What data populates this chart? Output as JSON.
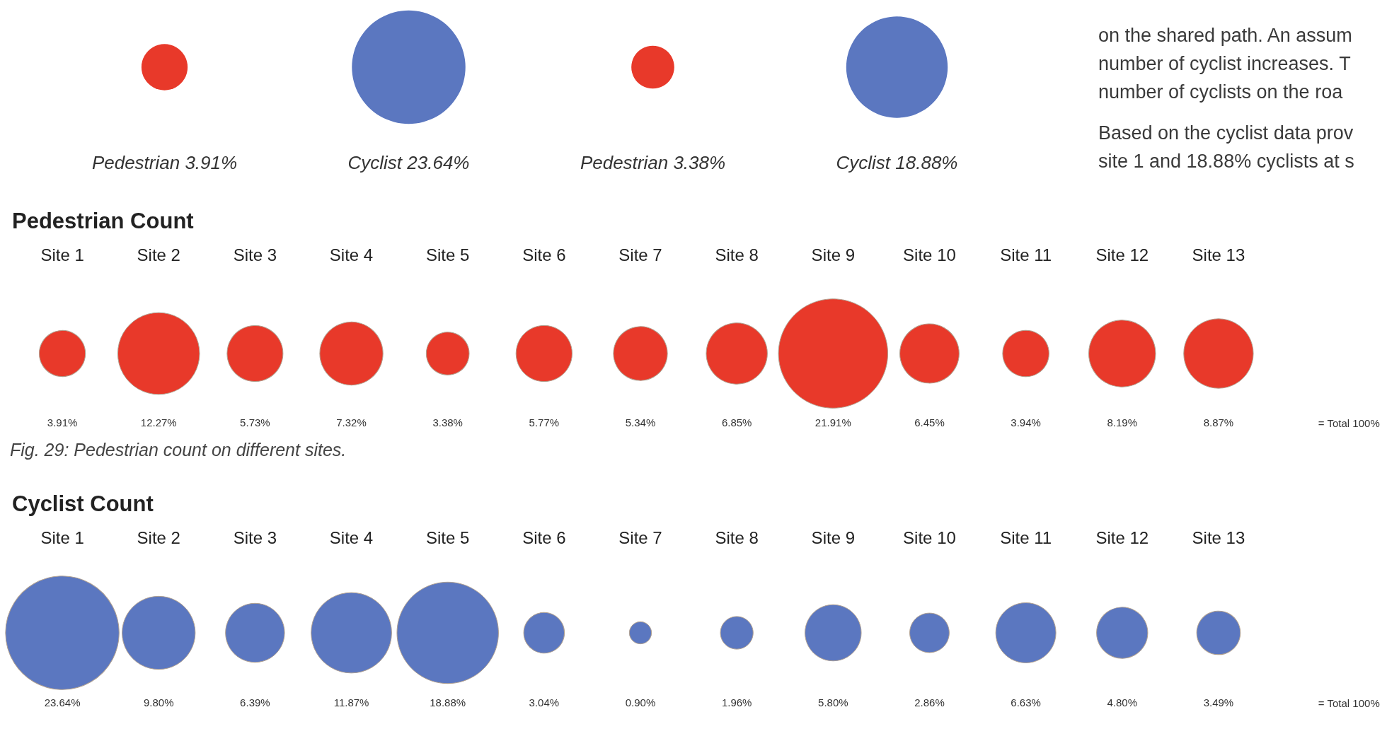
{
  "chart_data": [
    {
      "type": "other",
      "categories": [
        null,
        null,
        null,
        null
      ],
      "values": [
        3.91,
        23.64,
        3.38,
        18.88
      ],
      "colors": [
        "#e8392a",
        "#5b77c0",
        "#e8392a",
        "#5b77c0"
      ],
      "value_labels": [
        "Pedestrian 3.91%",
        "Cyclist 23.64%",
        "Pedestrian 3.38%",
        "Cyclist 18.88%"
      ],
      "annotations": [
        "on the shared path. An assum",
        "number of cyclist increases. T",
        "number of cyclists on the roa",
        "Based on the cyclist data prov",
        "site 1 and 18.88% cyclists at s"
      ]
    },
    {
      "type": "other",
      "title": "Pedestrian Count",
      "categories": [
        "Site 1",
        "Site 2",
        "Site 3",
        "Site 4",
        "Site 5",
        "Site 6",
        "Site 7",
        "Site 8",
        "Site 9",
        "Site 10",
        "Site 11",
        "Site 12",
        "Site 13"
      ],
      "values": [
        3.91,
        12.27,
        5.73,
        7.32,
        3.38,
        5.77,
        5.34,
        6.85,
        21.91,
        6.45,
        3.94,
        8.19,
        8.87
      ],
      "color": "#e8392a",
      "value_labels": [
        "3.91%",
        "12.27%",
        "5.73%",
        "7.32%",
        "3.38%",
        "5.77%",
        "5.34%",
        "6.85%",
        "21.91%",
        "6.45%",
        "3.94%",
        "8.19%",
        "8.87%"
      ],
      "annotations": [
        "= Total 100%",
        "Fig. 29: Pedestrian count on different sites."
      ]
    },
    {
      "type": "other",
      "title": "Cyclist Count",
      "categories": [
        "Site 1",
        "Site 2",
        "Site 3",
        "Site 4",
        "Site 5",
        "Site 6",
        "Site 7",
        "Site 8",
        "Site 9",
        "Site 10",
        "Site 11",
        "Site 12",
        "Site 13"
      ],
      "values": [
        23.64,
        9.8,
        6.39,
        11.87,
        18.88,
        3.04,
        0.9,
        1.96,
        5.8,
        2.86,
        6.63,
        4.8,
        3.49
      ],
      "color": "#5b77c0",
      "value_labels": [
        "23.64%",
        "9.80%",
        "6.39%",
        "11.87%",
        "18.88%",
        "3.04%",
        "0.90%",
        "1.96%",
        "5.80%",
        "2.86%",
        "6.63%",
        "4.80%",
        "3.49%"
      ],
      "annotations": [
        "= Total 100%"
      ]
    }
  ]
}
